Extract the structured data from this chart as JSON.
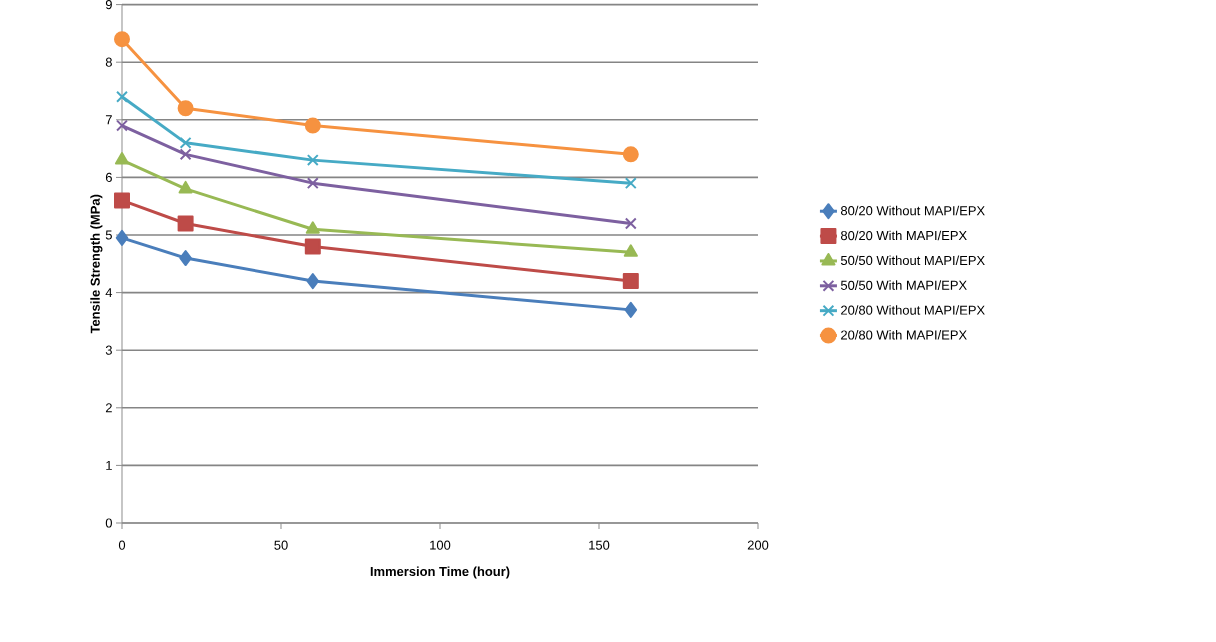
{
  "chart_data": {
    "type": "line",
    "xlabel": "Immersion Time (hour)",
    "ylabel": "Tensile Strength (MPa)",
    "x": [
      0,
      20,
      60,
      160
    ],
    "series": [
      {
        "name": "80/20 Without MAPI/EPX",
        "color": "#4a7ebb",
        "marker": "diamond",
        "values": [
          4.95,
          4.6,
          4.2,
          3.7
        ]
      },
      {
        "name": "80/20 With MAPI/EPX",
        "color": "#be4b48",
        "marker": "square",
        "values": [
          5.6,
          5.2,
          4.8,
          4.2
        ]
      },
      {
        "name": "50/50 Without MAPI/EPX",
        "color": "#98b954",
        "marker": "triangle",
        "values": [
          6.3,
          5.8,
          5.1,
          4.7
        ]
      },
      {
        "name": "50/50 With MAPI/EPX",
        "color": "#7d60a0",
        "marker": "cross",
        "values": [
          6.9,
          6.4,
          5.9,
          5.2
        ]
      },
      {
        "name": "20/80 Without MAPI/EPX",
        "color": "#46aac5",
        "marker": "cross",
        "values": [
          7.4,
          6.6,
          6.3,
          5.9
        ]
      },
      {
        "name": "20/80 With MAPI/EPX",
        "color": "#f69240",
        "marker": "circle",
        "values": [
          8.4,
          7.2,
          6.9,
          6.4
        ]
      }
    ],
    "xlim": [
      0,
      200
    ],
    "xticks": [
      0,
      50,
      100,
      150,
      200
    ],
    "ylim": [
      0,
      9
    ],
    "yticks": [
      0,
      1,
      2,
      3,
      4,
      5,
      6,
      7,
      8,
      9
    ],
    "grid": "y",
    "legend": "right",
    "line_style": "solid"
  }
}
